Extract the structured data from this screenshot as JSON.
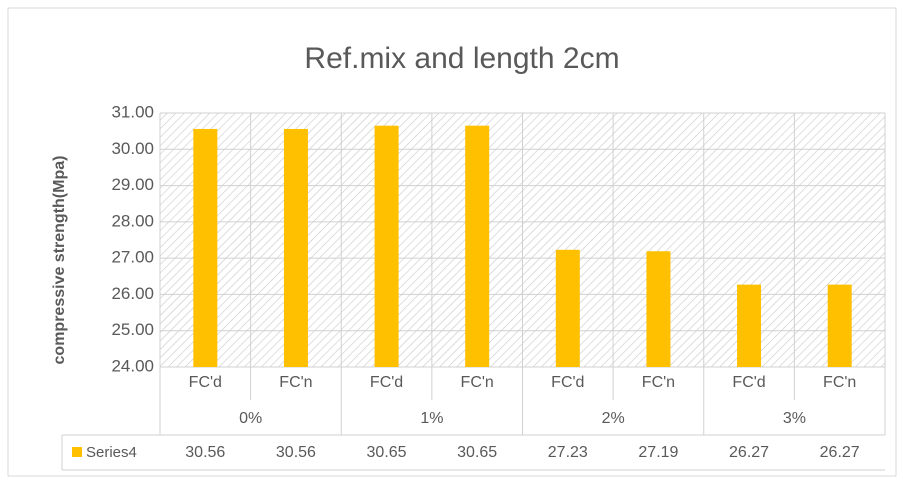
{
  "chart_data": {
    "type": "bar",
    "title": "Ref.mix and length 2cm",
    "y_label": "compressive strength(Mpa)",
    "categories": [
      "FC'd",
      "FC'n",
      "FC'd",
      "FC'n",
      "FC'd",
      "FC'n",
      "FC'd",
      "FC'n"
    ],
    "groups": [
      "0%",
      "1%",
      "2%",
      "3%"
    ],
    "series": [
      {
        "name": "Series4",
        "color": "#FFC000",
        "values": [
          30.56,
          30.56,
          30.65,
          30.65,
          27.23,
          27.19,
          26.27,
          26.27
        ]
      }
    ],
    "ylim": [
      24,
      31
    ],
    "yticks": [
      {
        "value": 24,
        "label": "24.00"
      },
      {
        "value": 25,
        "label": "25.00"
      },
      {
        "value": 26,
        "label": "26.00"
      },
      {
        "value": 27,
        "label": "27.00"
      },
      {
        "value": 28,
        "label": "28.00"
      },
      {
        "value": 29,
        "label": "29.00"
      },
      {
        "value": 30,
        "label": "30.00"
      },
      {
        "value": 31,
        "label": "31.00"
      }
    ],
    "grid": true,
    "data_table": true
  }
}
